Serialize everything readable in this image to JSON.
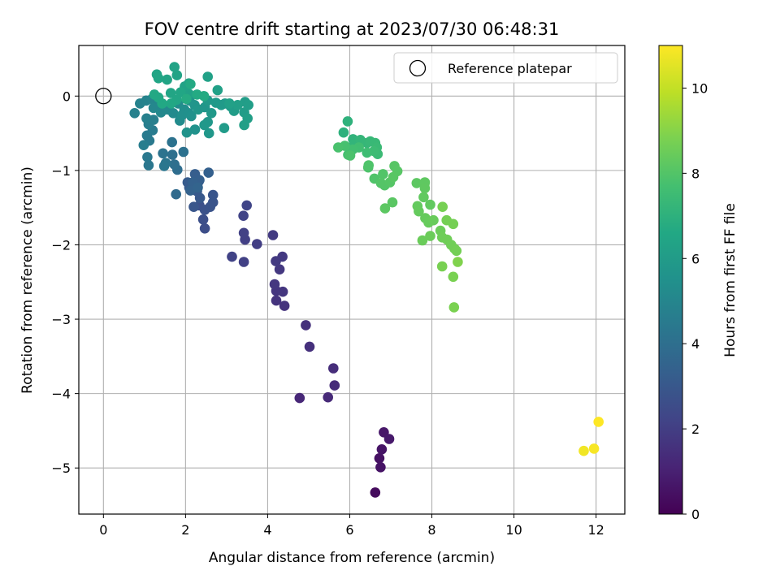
{
  "chart_data": {
    "type": "scatter",
    "title": "FOV centre drift starting at 2023/07/30 06:48:31",
    "xlabel": "Angular distance from reference (arcmin)",
    "ylabel": "Rotation from reference (arcmin)",
    "xlim": [
      -0.6,
      12.7
    ],
    "ylim": [
      -5.62,
      0.68
    ],
    "xticks": [
      0,
      2,
      4,
      6,
      8,
      10,
      12
    ],
    "yticks": [
      0,
      -1,
      -2,
      -3,
      -4,
      -5
    ],
    "grid": true,
    "legend": {
      "position": "top-right",
      "label": "Reference platepar",
      "marker": "open-circle"
    },
    "reference_point": [
      0,
      0
    ],
    "colorbar": {
      "label": "Hours from first FF file",
      "colormap": "viridis",
      "range": [
        0,
        11
      ],
      "ticks": [
        0,
        2,
        4,
        6,
        8,
        10
      ]
    },
    "series": [
      {
        "points": [
          [
            6.62,
            -5.33,
            0.3
          ],
          [
            6.72,
            -4.87,
            0.5
          ],
          [
            6.78,
            -4.75,
            0.6
          ],
          [
            6.75,
            -4.99,
            0.55
          ],
          [
            6.83,
            -4.52,
            0.7
          ],
          [
            6.96,
            -4.61,
            0.75
          ],
          [
            4.78,
            -4.06,
            1.2
          ],
          [
            5.47,
            -4.05,
            1.3
          ],
          [
            5.63,
            -3.89,
            1.35
          ],
          [
            5.6,
            -3.66,
            1.4
          ],
          [
            5.02,
            -3.37,
            1.5
          ],
          [
            4.93,
            -3.08,
            1.55
          ],
          [
            4.41,
            -2.82,
            1.6
          ],
          [
            4.21,
            -2.75,
            1.65
          ],
          [
            4.21,
            -2.62,
            1.7
          ],
          [
            4.37,
            -2.63,
            1.72
          ],
          [
            4.17,
            -2.53,
            1.75
          ],
          [
            4.29,
            -2.33,
            1.8
          ],
          [
            4.36,
            -2.16,
            1.82
          ],
          [
            4.2,
            -2.22,
            1.85
          ],
          [
            4.13,
            -1.87,
            1.9
          ],
          [
            3.74,
            -1.99,
            2.0
          ],
          [
            3.45,
            -1.93,
            2.05
          ],
          [
            3.42,
            -1.84,
            2.1
          ],
          [
            3.42,
            -2.23,
            2.1
          ],
          [
            3.13,
            -2.16,
            2.15
          ],
          [
            3.41,
            -1.61,
            2.2
          ],
          [
            3.49,
            -1.47,
            2.25
          ],
          [
            2.47,
            -1.78,
            2.6
          ],
          [
            2.43,
            -1.66,
            2.65
          ],
          [
            2.34,
            -1.47,
            2.7
          ],
          [
            2.47,
            -1.53,
            2.75
          ],
          [
            2.6,
            -1.49,
            2.8
          ],
          [
            2.67,
            -1.43,
            2.85
          ],
          [
            2.67,
            -1.33,
            2.9
          ],
          [
            2.2,
            -1.49,
            2.95
          ],
          [
            2.35,
            -1.37,
            3.0
          ],
          [
            2.28,
            -1.28,
            3.05
          ],
          [
            2.09,
            -1.23,
            3.1
          ],
          [
            2.05,
            -1.16,
            3.15
          ],
          [
            2.32,
            -1.15,
            3.2
          ],
          [
            2.23,
            -1.05,
            3.25
          ],
          [
            2.34,
            -1.13,
            3.3
          ],
          [
            2.56,
            -1.03,
            3.35
          ],
          [
            2.18,
            -1.16,
            3.4
          ],
          [
            2.12,
            -1.27,
            3.45
          ],
          [
            2.3,
            -1.23,
            3.5
          ],
          [
            1.77,
            -1.32,
            3.8
          ],
          [
            1.8,
            -0.99,
            3.9
          ],
          [
            1.73,
            -0.92,
            4.0
          ],
          [
            1.68,
            -0.79,
            4.05
          ],
          [
            1.95,
            -0.75,
            4.1
          ],
          [
            1.67,
            -0.62,
            4.15
          ],
          [
            1.45,
            -0.77,
            4.2
          ],
          [
            1.52,
            -0.9,
            4.25
          ],
          [
            1.48,
            -0.94,
            4.3
          ],
          [
            1.1,
            -0.93,
            4.35
          ],
          [
            1.07,
            -0.82,
            4.4
          ],
          [
            1.12,
            -0.6,
            4.45
          ],
          [
            1.06,
            -0.53,
            4.5
          ],
          [
            1.2,
            -0.46,
            4.55
          ],
          [
            0.98,
            -0.66,
            4.6
          ],
          [
            1.1,
            -0.38,
            4.65
          ],
          [
            1.22,
            -0.32,
            4.7
          ],
          [
            1.05,
            -0.3,
            4.75
          ],
          [
            0.76,
            -0.23,
            4.8
          ],
          [
            0.89,
            -0.1,
            4.85
          ],
          [
            1.04,
            -0.06,
            4.9
          ],
          [
            1.18,
            -0.04,
            4.95
          ],
          [
            1.35,
            -0.12,
            5.0
          ],
          [
            1.22,
            -0.16,
            5.05
          ],
          [
            1.4,
            -0.22,
            5.1
          ],
          [
            1.56,
            -0.18,
            5.15
          ],
          [
            1.7,
            -0.23,
            5.2
          ],
          [
            1.86,
            -0.33,
            5.25
          ],
          [
            1.82,
            -0.1,
            5.3
          ],
          [
            1.97,
            -0.18,
            5.35
          ],
          [
            1.91,
            -0.26,
            5.4
          ],
          [
            2.08,
            -0.23,
            5.45
          ],
          [
            2.14,
            -0.27,
            5.5
          ],
          [
            2.23,
            -0.45,
            5.55
          ],
          [
            2.03,
            -0.49,
            5.6
          ],
          [
            2.1,
            -0.06,
            5.65
          ],
          [
            2.22,
            -0.12,
            5.7
          ],
          [
            2.31,
            -0.18,
            5.72
          ],
          [
            2.47,
            -0.15,
            5.75
          ],
          [
            2.54,
            -0.35,
            5.78
          ],
          [
            2.57,
            -0.5,
            5.8
          ],
          [
            2.46,
            -0.39,
            5.82
          ],
          [
            2.63,
            -0.23,
            5.85
          ],
          [
            2.54,
            -0.06,
            5.88
          ],
          [
            2.74,
            -0.09,
            5.9
          ],
          [
            2.87,
            -0.12,
            5.92
          ],
          [
            2.96,
            -0.1,
            5.95
          ],
          [
            2.94,
            -0.43,
            5.98
          ],
          [
            3.1,
            -0.14,
            6.0
          ],
          [
            3.18,
            -0.2,
            6.02
          ],
          [
            3.43,
            -0.22,
            6.05
          ],
          [
            3.45,
            -0.08,
            6.08
          ],
          [
            3.53,
            -0.12,
            6.1
          ],
          [
            3.51,
            -0.3,
            6.12
          ],
          [
            3.43,
            -0.39,
            6.15
          ],
          [
            3.27,
            -0.12,
            6.18
          ],
          [
            3.07,
            -0.1,
            6.2
          ],
          [
            2.78,
            0.08,
            6.22
          ],
          [
            2.54,
            0.26,
            6.25
          ],
          [
            2.08,
            0.03,
            6.28
          ],
          [
            2.08,
            0.17,
            6.3
          ],
          [
            1.98,
            0.13,
            6.32
          ],
          [
            1.73,
            0.39,
            6.35
          ],
          [
            1.79,
            0.28,
            6.38
          ],
          [
            1.55,
            0.22,
            6.4
          ],
          [
            1.3,
            0.29,
            6.42
          ],
          [
            1.34,
            0.24,
            6.45
          ],
          [
            1.64,
            0.04,
            6.48
          ],
          [
            1.88,
            0.05,
            6.5
          ],
          [
            1.78,
            -0.05,
            6.52
          ],
          [
            1.65,
            -0.1,
            6.55
          ],
          [
            1.43,
            -0.1,
            6.58
          ],
          [
            1.34,
            -0.02,
            6.6
          ],
          [
            1.24,
            0.02,
            6.62
          ],
          [
            2.12,
            0.16,
            6.65
          ],
          [
            2.28,
            0.02,
            6.68
          ],
          [
            2.45,
            0.0,
            6.7
          ],
          [
            2.02,
            -0.04,
            6.72
          ],
          [
            5.85,
            -0.49,
            7.0
          ],
          [
            5.95,
            -0.34,
            7.05
          ],
          [
            6.08,
            -0.58,
            7.1
          ],
          [
            6.1,
            -0.65,
            7.15
          ],
          [
            6.26,
            -0.59,
            7.2
          ],
          [
            6.42,
            -0.63,
            7.25
          ],
          [
            6.5,
            -0.61,
            7.3
          ],
          [
            6.62,
            -0.63,
            7.35
          ],
          [
            6.66,
            -0.69,
            7.4
          ],
          [
            6.68,
            -0.78,
            7.45
          ],
          [
            6.59,
            -0.74,
            7.5
          ],
          [
            6.42,
            -0.76,
            7.55
          ],
          [
            6.22,
            -0.69,
            7.6
          ],
          [
            6.07,
            -0.72,
            7.65
          ],
          [
            5.96,
            -0.79,
            7.7
          ],
          [
            5.88,
            -0.67,
            7.75
          ],
          [
            5.72,
            -0.69,
            7.8
          ],
          [
            6.01,
            -0.8,
            7.85
          ],
          [
            6.45,
            -0.96,
            7.9
          ],
          [
            6.46,
            -0.93,
            7.92
          ],
          [
            6.6,
            -1.11,
            7.95
          ],
          [
            6.81,
            -1.05,
            7.98
          ],
          [
            6.85,
            -1.2,
            8.0
          ],
          [
            6.76,
            -1.17,
            8.02
          ],
          [
            6.98,
            -1.16,
            8.05
          ],
          [
            7.09,
            -0.94,
            8.08
          ],
          [
            7.16,
            -1.01,
            8.1
          ],
          [
            7.06,
            -1.09,
            8.12
          ],
          [
            7.04,
            -1.43,
            8.15
          ],
          [
            6.86,
            -1.51,
            8.18
          ],
          [
            7.63,
            -1.17,
            8.2
          ],
          [
            7.82,
            -1.19,
            8.22
          ],
          [
            7.83,
            -1.16,
            8.25
          ],
          [
            7.83,
            -1.24,
            8.28
          ],
          [
            7.8,
            -1.36,
            8.3
          ],
          [
            7.96,
            -1.46,
            8.32
          ],
          [
            7.65,
            -1.48,
            8.35
          ],
          [
            7.68,
            -1.55,
            8.38
          ],
          [
            7.84,
            -1.64,
            8.4
          ],
          [
            7.92,
            -1.7,
            8.42
          ],
          [
            8.04,
            -1.67,
            8.45
          ],
          [
            7.77,
            -1.94,
            8.48
          ],
          [
            7.96,
            -1.88,
            8.5
          ],
          [
            8.21,
            -1.81,
            8.52
          ],
          [
            8.25,
            -1.9,
            8.55
          ],
          [
            8.37,
            -1.93,
            8.58
          ],
          [
            8.47,
            -2.0,
            8.6
          ],
          [
            8.55,
            -2.05,
            8.62
          ],
          [
            8.6,
            -2.08,
            8.65
          ],
          [
            8.36,
            -1.67,
            8.68
          ],
          [
            8.52,
            -1.72,
            8.7
          ],
          [
            8.26,
            -1.49,
            8.72
          ],
          [
            8.25,
            -2.29,
            8.75
          ],
          [
            8.52,
            -2.43,
            8.78
          ],
          [
            8.54,
            -2.84,
            8.8
          ],
          [
            8.63,
            -2.23,
            8.9
          ],
          [
            11.7,
            -4.77,
            10.8
          ],
          [
            11.95,
            -4.74,
            10.9
          ],
          [
            12.06,
            -4.38,
            11.0
          ]
        ]
      }
    ]
  }
}
